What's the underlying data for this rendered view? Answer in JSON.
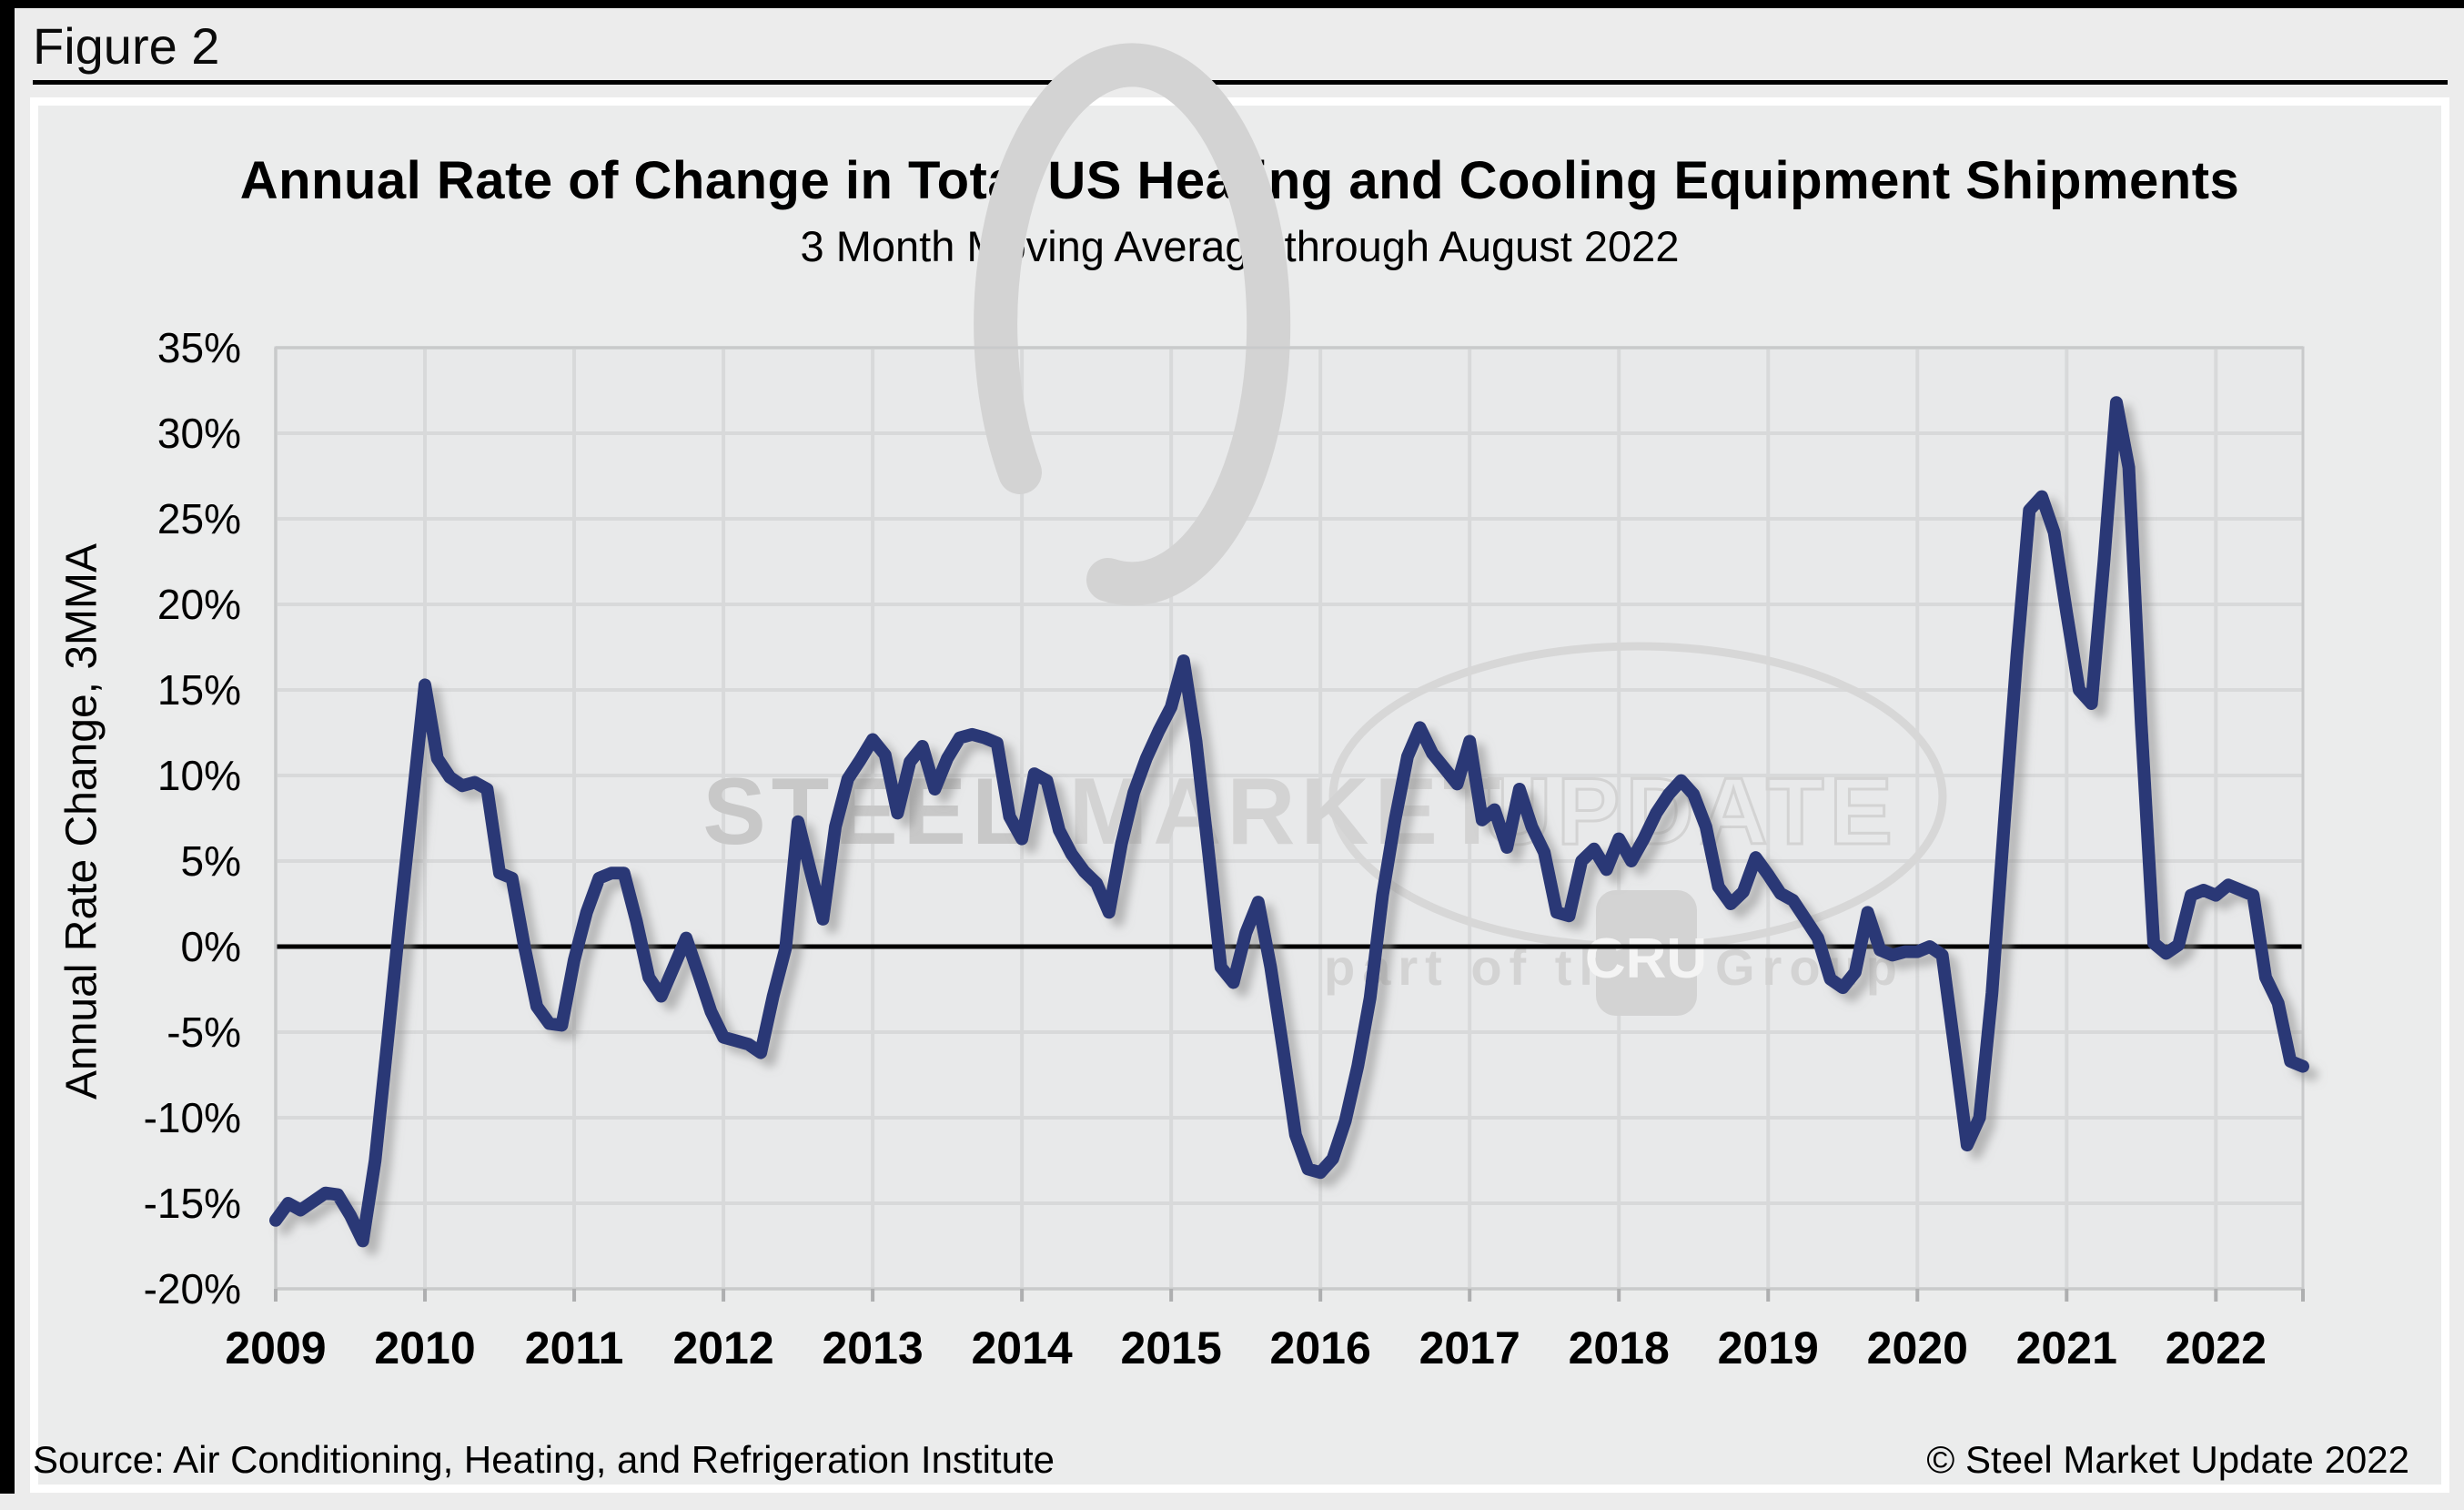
{
  "figure_label": "Figure 2",
  "chart": {
    "title": "Annual Rate of Change in Total US Heating and Cooling Equipment Shipments",
    "subtitle": "3 Month Moving Average through August 2022"
  },
  "watermark": {
    "word1": "STEEL",
    "word2": "MARKET",
    "word3": "UPDATE",
    "tagline_left": "part of the",
    "badge": "CRU",
    "tagline_right": "Group"
  },
  "footer": {
    "source": "Source: Air Conditioning, Heating, and Refrigeration Institute",
    "copyright": "© Steel Market Update 2022"
  },
  "colors": {
    "line": "#2c3876",
    "zero_line": "#000000",
    "grid": "#d8d9da",
    "plot_bg": "#e8e9ea",
    "plot_frame": "#c9cacb",
    "watermark_dark": "#c8c8c8",
    "watermark_mid": "#d3d3d3",
    "watermark_light": "#d7d7d7"
  },
  "chart_data": {
    "type": "line",
    "title": "Annual Rate of Change in Total US Heating and Cooling Equipment Shipments",
    "subtitle": "3 Month Moving Average through August 2022",
    "ylabel": "Annual Rate Change, 3MMA",
    "xlabel": "",
    "ylim": [
      -20,
      35
    ],
    "ytick_step": 5,
    "ytick_labels": [
      "35%",
      "30%",
      "25%",
      "20%",
      "15%",
      "10%",
      "5%",
      "0%",
      "-5%",
      "-10%",
      "-15%",
      "-20%"
    ],
    "x_start": "2009-01",
    "x_end": "2022-08",
    "xtick_labels": [
      "2009",
      "2010",
      "2011",
      "2012",
      "2013",
      "2014",
      "2015",
      "2016",
      "2017",
      "2018",
      "2019",
      "2020",
      "2021",
      "2022"
    ],
    "grid": true,
    "legend_position": "none",
    "series": [
      {
        "name": "Annual Rate Change, 3MMA",
        "values": [
          -16.0,
          -15.0,
          -15.4,
          -14.9,
          -14.4,
          -14.5,
          -15.7,
          -17.2,
          -12.5,
          -5.5,
          1.7,
          8.5,
          15.3,
          11.0,
          9.9,
          9.4,
          9.6,
          9.2,
          4.3,
          4.0,
          0.0,
          -3.5,
          -4.5,
          -4.6,
          -0.8,
          2.0,
          4.0,
          4.3,
          4.3,
          1.5,
          -1.8,
          -2.9,
          -1.2,
          0.5,
          -1.6,
          -3.8,
          -5.3,
          -5.5,
          -5.7,
          -6.2,
          -2.9,
          -0.1,
          7.3,
          4.4,
          1.6,
          7.0,
          9.8,
          10.9,
          12.1,
          11.2,
          7.8,
          10.8,
          11.7,
          9.2,
          11.0,
          12.2,
          12.4,
          12.2,
          11.9,
          7.6,
          6.3,
          10.1,
          9.7,
          6.8,
          5.4,
          4.4,
          3.7,
          2.0,
          6.0,
          9.0,
          11.0,
          12.6,
          14.0,
          16.7,
          12.0,
          5.5,
          -1.2,
          -2.1,
          0.8,
          2.6,
          -1.2,
          -6.0,
          -11.0,
          -13.0,
          -13.2,
          -12.4,
          -10.2,
          -7.0,
          -3.0,
          3.0,
          7.4,
          11.1,
          12.8,
          11.3,
          10.4,
          9.5,
          12.0,
          7.4,
          8.0,
          5.8,
          9.2,
          7.0,
          5.5,
          2.0,
          1.8,
          5.0,
          5.7,
          4.5,
          6.3,
          5.0,
          6.3,
          7.8,
          8.9,
          9.7,
          8.9,
          7.0,
          3.5,
          2.5,
          3.2,
          5.2,
          4.2,
          3.1,
          2.7,
          1.6,
          0.5,
          -1.9,
          -2.4,
          -1.5,
          2.0,
          -0.2,
          -0.5,
          -0.3,
          -0.3,
          0.0,
          -0.5,
          -6.0,
          -11.6,
          -10.0,
          -2.7,
          7.4,
          17.0,
          25.5,
          26.3,
          24.2,
          19.5,
          15.0,
          14.2,
          22.5,
          31.8,
          28.0,
          13.0,
          0.2,
          -0.4,
          0.1,
          3.0,
          3.3,
          3.0,
          3.6,
          3.3,
          3.0,
          -1.8,
          -3.3,
          -6.7,
          -7.0
        ]
      }
    ]
  }
}
